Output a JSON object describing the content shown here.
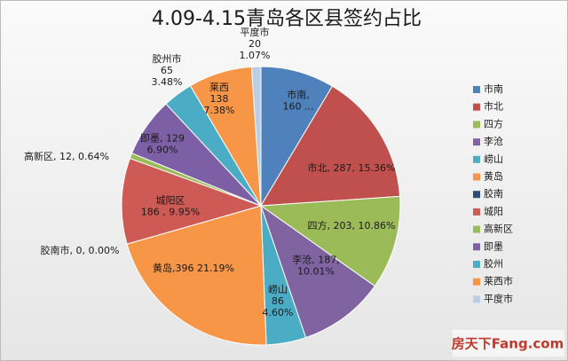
{
  "chart_data": {
    "type": "pie",
    "title": "4.09-4.15青岛各区县签约占比",
    "categories": [
      "市南",
      "市北",
      "四方",
      "李沧",
      "崂山",
      "黄岛",
      "胶南",
      "城阳",
      "高新区",
      "即墨",
      "胶州",
      "莱西市",
      "平度市"
    ],
    "values": [
      160,
      287,
      203,
      187,
      86,
      396,
      0,
      186,
      12,
      129,
      65,
      138,
      20
    ],
    "value_labels": [
      [
        "市南,",
        "160 ..."
      ],
      [
        "市北, 287, 15.36%"
      ],
      [
        "四方, 203, 10.86%"
      ],
      [
        "李沧, 187,",
        "10.01%"
      ],
      [
        "崂山",
        "86",
        "4.60%"
      ],
      [
        "黄岛,396 21.19%"
      ],
      [
        "胶南市, 0, 0.00%"
      ],
      [
        "城阳区",
        "186 , 9.95%"
      ],
      [
        "高新区, 12, 0.64%"
      ],
      [
        "即墨, 129",
        "6.90%"
      ],
      [
        "胶州市",
        "65",
        "3.48%"
      ],
      [
        "莱西",
        "138",
        "7.38%"
      ],
      [
        "平度市",
        "20",
        "1.07%"
      ]
    ],
    "colors": [
      "#4f81bd",
      "#c0504d",
      "#9bbb59",
      "#8064a2",
      "#4bacc6",
      "#f79646",
      "#2c4d75",
      "#cd5a55",
      "#9bbb59",
      "#7d5fa5",
      "#4bacc6",
      "#f79646",
      "#b9cde5"
    ],
    "legend": "right",
    "watermark": "房天下Fang.com"
  }
}
